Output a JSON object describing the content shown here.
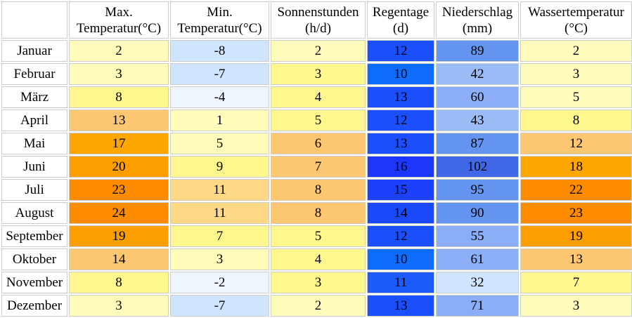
{
  "headers": [
    {
      "line1": "",
      "line2": ""
    },
    {
      "line1": "Max.",
      "line2": "Temperatur(°C)"
    },
    {
      "line1": "Min.",
      "line2": "Temperatur(°C)"
    },
    {
      "line1": "Sonnenstunden",
      "line2": "(h/d)"
    },
    {
      "line1": "Regentage",
      "line2": "(d)"
    },
    {
      "line1": "Niederschlag",
      "line2": "(mm)"
    },
    {
      "line1": "Wassertemperatur",
      "line2": "(°C)"
    }
  ],
  "rows": [
    {
      "month": "Januar",
      "max": "2",
      "min": "-8",
      "sun": "2",
      "raindays": "12",
      "precip": "89",
      "water": "2"
    },
    {
      "month": "Februar",
      "max": "3",
      "min": "-7",
      "sun": "3",
      "raindays": "10",
      "precip": "42",
      "water": "3"
    },
    {
      "month": "März",
      "max": "8",
      "min": "-4",
      "sun": "4",
      "raindays": "13",
      "precip": "60",
      "water": "5"
    },
    {
      "month": "April",
      "max": "13",
      "min": "1",
      "sun": "5",
      "raindays": "12",
      "precip": "43",
      "water": "8"
    },
    {
      "month": "Mai",
      "max": "17",
      "min": "5",
      "sun": "6",
      "raindays": "13",
      "precip": "87",
      "water": "12"
    },
    {
      "month": "Juni",
      "max": "20",
      "min": "9",
      "sun": "7",
      "raindays": "16",
      "precip": "102",
      "water": "18"
    },
    {
      "month": "Juli",
      "max": "23",
      "min": "11",
      "sun": "8",
      "raindays": "15",
      "precip": "95",
      "water": "22"
    },
    {
      "month": "August",
      "max": "24",
      "min": "11",
      "sun": "8",
      "raindays": "14",
      "precip": "90",
      "water": "23"
    },
    {
      "month": "September",
      "max": "19",
      "min": "7",
      "sun": "5",
      "raindays": "12",
      "precip": "55",
      "water": "19"
    },
    {
      "month": "Oktober",
      "max": "14",
      "min": "3",
      "sun": "4",
      "raindays": "10",
      "precip": "61",
      "water": "13"
    },
    {
      "month": "November",
      "max": "8",
      "min": "-2",
      "sun": "3",
      "raindays": "11",
      "precip": "32",
      "water": "7"
    },
    {
      "month": "Dezember",
      "max": "3",
      "min": "-7",
      "sun": "2",
      "raindays": "13",
      "precip": "71",
      "water": "3"
    }
  ],
  "colors": {
    "max": [
      "#fffcbb",
      "#fffcbb",
      "#fdf78e",
      "#fdc670",
      "#fda500",
      "#fd9e00",
      "#fd8b00",
      "#fd8b00",
      "#fd9e00",
      "#fdc670",
      "#fdf78e",
      "#fffcbb"
    ],
    "min": [
      "#cfe5fd",
      "#cfe5fd",
      "#eef5fd",
      "#fffcbb",
      "#fffcbb",
      "#fdf78e",
      "#fdd985",
      "#fdd985",
      "#fdf78e",
      "#fffcbb",
      "#eef5fd",
      "#cfe5fd"
    ],
    "sun": [
      "#fffcbb",
      "#fdf78e",
      "#fdf78e",
      "#fdf78e",
      "#fdc670",
      "#fdc670",
      "#fdc670",
      "#fdc670",
      "#fdf78e",
      "#fdf78e",
      "#fdf78e",
      "#fffcbb"
    ],
    "raindays": [
      "#1c4ffc",
      "#0d6cfc",
      "#1c4ffc",
      "#1c4ffc",
      "#1c4ffc",
      "#1c36fc",
      "#1c40fc",
      "#1c48fc",
      "#1c4ffc",
      "#0d6cfc",
      "#1c5afc",
      "#1c4ffc"
    ],
    "precip": [
      "#6394f0",
      "#9bbbf6",
      "#8caef6",
      "#9bbbf6",
      "#6394f0",
      "#3f67e6",
      "#6394f0",
      "#6394f0",
      "#8caef6",
      "#8caef6",
      "#cfe5fd",
      "#8caef6"
    ],
    "water": [
      "#fffcbb",
      "#fffcbb",
      "#fffcbb",
      "#fdf78e",
      "#fdc670",
      "#fda500",
      "#fd8b00",
      "#fd8b00",
      "#fd9e00",
      "#fdc670",
      "#fdf78e",
      "#fffcbb"
    ]
  }
}
